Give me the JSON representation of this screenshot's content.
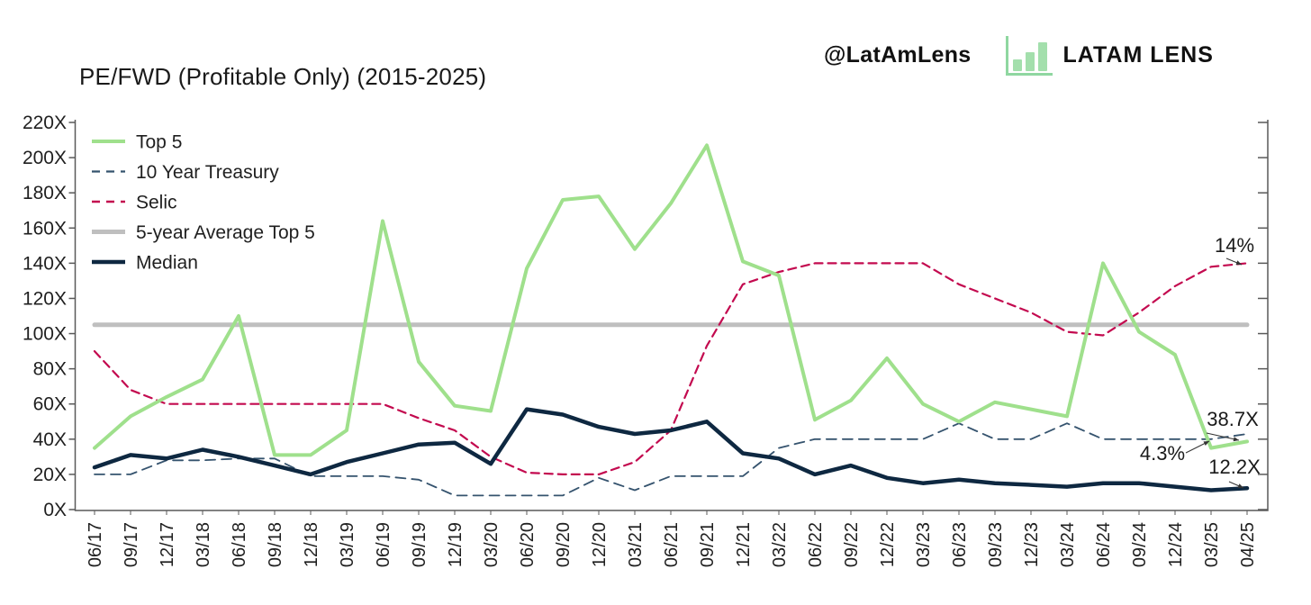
{
  "header": {
    "title": "PE/FWD (Profitable Only) (2015-2025)",
    "handle": "@LatAmLens",
    "brand_name": "LATAM LENS",
    "brand_icon": "bar-chart-icon",
    "brand_green": "#a3dfac"
  },
  "chart_data": {
    "type": "line",
    "title": "PE/FWD (Profitable Only) (2015-2025)",
    "grid": false,
    "legend_position": "inside-top-left",
    "y_axis": {
      "min": 0,
      "max": 220,
      "tick_step": 20,
      "suffix": "X",
      "tick_labels": [
        "0X",
        "20X",
        "40X",
        "60X",
        "80X",
        "100X",
        "120X",
        "140X",
        "160X",
        "180X",
        "200X",
        "220X"
      ]
    },
    "categories": [
      "06/17",
      "09/17",
      "12/17",
      "03/18",
      "06/18",
      "09/18",
      "12/18",
      "03/19",
      "06/19",
      "09/19",
      "12/19",
      "03/20",
      "06/20",
      "09/20",
      "12/20",
      "03/21",
      "06/21",
      "09/21",
      "12/21",
      "03/22",
      "06/22",
      "09/22",
      "12/22",
      "03/23",
      "06/23",
      "09/23",
      "12/23",
      "03/24",
      "06/24",
      "09/24",
      "12/24",
      "03/25",
      "04/25"
    ],
    "series": [
      {
        "name": "Top 5",
        "color": "#9fe08c",
        "dash": false,
        "width": 4,
        "values": [
          35,
          53,
          64,
          74,
          110,
          31,
          31,
          45,
          164,
          84,
          59,
          56,
          137,
          176,
          178,
          148,
          174,
          207,
          141,
          133,
          51,
          62,
          86,
          60,
          50,
          61,
          57,
          53,
          140,
          101,
          88,
          35,
          38.7
        ]
      },
      {
        "name": "10 Year Treasury",
        "color": "#35536e",
        "dash": true,
        "width": 1.8,
        "values": [
          20,
          20,
          28,
          28,
          29,
          29,
          19,
          19,
          19,
          17,
          8,
          8,
          8,
          8,
          18,
          11,
          19,
          19,
          19,
          35,
          40,
          40,
          40,
          40,
          49,
          40,
          40,
          49,
          40,
          40,
          40,
          40,
          43
        ]
      },
      {
        "name": "Selic",
        "color": "#c30a4f",
        "dash": true,
        "width": 2.2,
        "values": [
          90,
          68,
          60,
          60,
          60,
          60,
          60,
          60,
          60,
          52,
          45,
          30,
          21,
          20,
          20,
          27,
          45,
          93,
          128,
          135,
          140,
          140,
          140,
          140,
          128,
          120,
          112,
          101,
          99,
          112,
          127,
          138,
          140
        ]
      },
      {
        "name": "5-year Average Top 5",
        "color": "#bfbfbf",
        "dash": false,
        "width": 5,
        "constant_value": 105
      },
      {
        "name": "Median",
        "color": "#0e2841",
        "dash": false,
        "width": 4.5,
        "values": [
          24,
          31,
          29,
          34,
          30,
          25,
          20,
          27,
          32,
          37,
          38,
          26,
          57,
          54,
          47,
          43,
          45,
          50,
          32,
          29,
          20,
          25,
          18,
          15,
          17,
          15,
          14,
          13,
          15,
          15,
          13,
          11,
          12.2
        ]
      }
    ],
    "annotations": [
      {
        "text": "14%",
        "series": "Selic",
        "at_value": 140
      },
      {
        "text": "38.7X",
        "series": "Top 5",
        "at_value": 38.7
      },
      {
        "text": "4.3%",
        "series": "10 Year Treasury",
        "at_value": 43
      },
      {
        "text": "12.2X",
        "series": "Median",
        "at_value": 12.2
      }
    ]
  }
}
